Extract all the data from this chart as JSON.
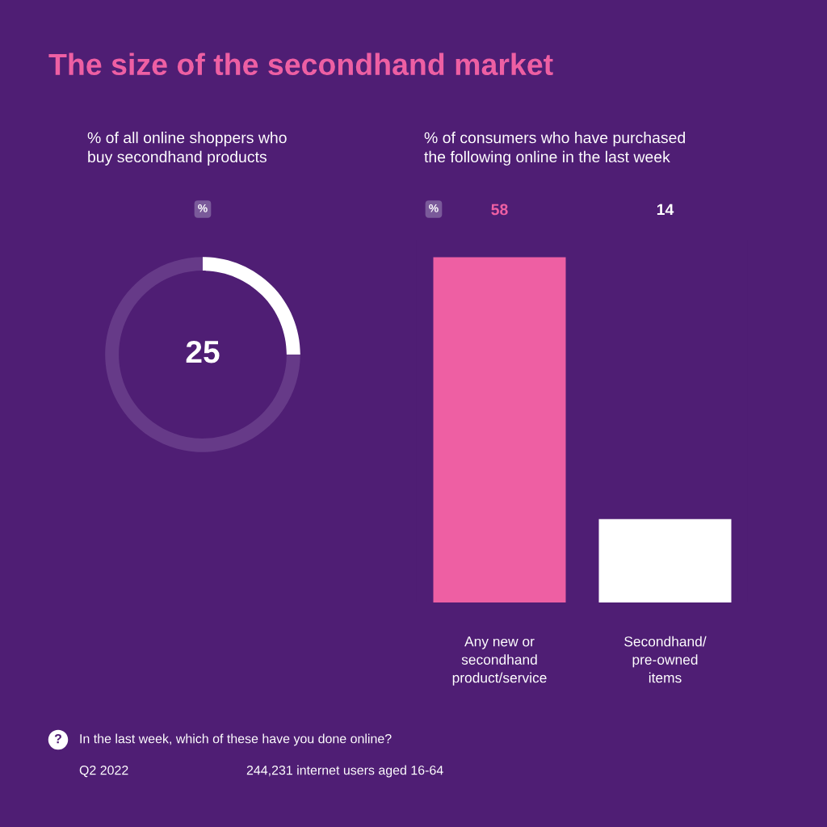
{
  "chart_data": [
    {
      "type": "other",
      "title": "The size of the secondhand market",
      "annotations": [
        "?",
        "In the last week, which of these have you done online?",
        "Q2 2022",
        "244,231 internet users aged 16-64"
      ]
    },
    {
      "type": "donut",
      "title": "% of all online shoppers who\nbuy secondhand products",
      "categories": [
        null,
        null
      ],
      "values": [
        25,
        75
      ],
      "colors": [
        "#ffffff",
        "#663a88"
      ],
      "value_labels": [
        "25",
        null
      ],
      "annotations": [
        "%"
      ],
      "legend": false
    },
    {
      "type": "bar",
      "title": "% of consumers who have purchased\nthe following online in the last week",
      "categories": [
        "Any new or\nsecondhand\nproduct/service",
        "Secondhand/\npre-owned\nitems"
      ],
      "values": [
        58,
        14
      ],
      "colors": [
        "#ee5fa3",
        "#ffffff"
      ],
      "tick_labels": "x",
      "data_labels": true,
      "annotations": [
        "%"
      ],
      "legend": false,
      "grid": false
    }
  ]
}
